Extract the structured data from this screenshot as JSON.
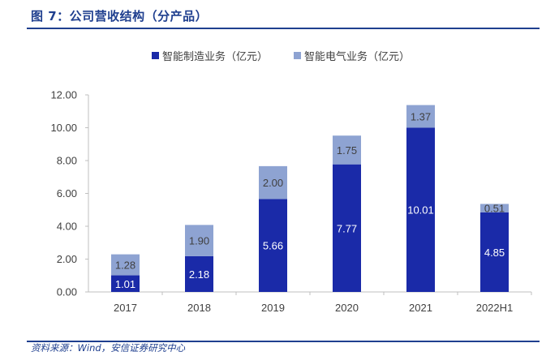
{
  "figure": {
    "title": "图 7：公司营收结构（分产品）",
    "source": "资料来源：Wind，安信证券研究中心"
  },
  "colors": {
    "series1": "#1a2aa8",
    "series2": "#8ea3d2",
    "rule": "#1f3f8f",
    "axis": "#bfbfbf",
    "text": "#404040"
  },
  "chart_data": {
    "type": "bar",
    "stacked": true,
    "categories": [
      "2017",
      "2018",
      "2019",
      "2020",
      "2021",
      "2022H1"
    ],
    "series": [
      {
        "name": "智能制造业务（亿元）",
        "values": [
          1.01,
          2.18,
          5.66,
          7.77,
          10.01,
          4.85
        ]
      },
      {
        "name": "智能电气业务（亿元）",
        "values": [
          1.28,
          1.9,
          2.0,
          1.75,
          1.37,
          0.51
        ]
      }
    ],
    "ylim": [
      0,
      12
    ],
    "yticks": [
      "0.00",
      "2.00",
      "4.00",
      "6.00",
      "8.00",
      "10.00",
      "12.00"
    ],
    "legend_position": "top-center",
    "grid": false
  }
}
